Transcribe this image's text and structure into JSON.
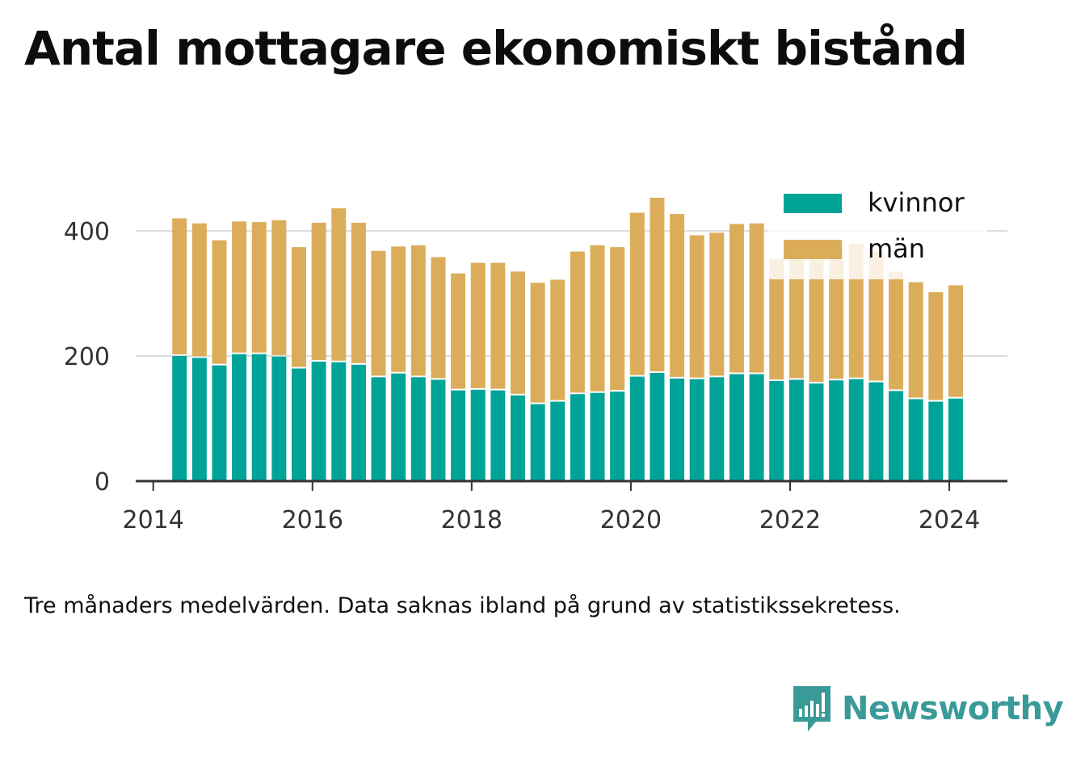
{
  "title": "Antal mottagare ekonomiskt bistånd",
  "note": "Tre månaders medelvärden. Data saknas ibland på grund av statistikssekretess.",
  "brand": {
    "name": "Newsworthy",
    "icon": "newsworthy-logo-icon",
    "color": "#3a9a97"
  },
  "chart_data": {
    "type": "bar",
    "stacked": true,
    "x": [
      2014.33,
      2014.58,
      2014.83,
      2015.08,
      2015.33,
      2015.58,
      2015.83,
      2016.08,
      2016.33,
      2016.58,
      2016.83,
      2017.08,
      2017.33,
      2017.58,
      2017.83,
      2018.08,
      2018.33,
      2018.58,
      2018.83,
      2019.08,
      2019.33,
      2019.58,
      2019.83,
      2020.08,
      2020.33,
      2020.58,
      2020.83,
      2021.08,
      2021.33,
      2021.58,
      2021.83,
      2022.08,
      2022.33,
      2022.58,
      2022.83,
      2023.08,
      2023.33,
      2023.58,
      2023.83,
      2024.08
    ],
    "series": [
      {
        "name": "kvinnor",
        "color": "#00a398",
        "values": [
          200,
          197,
          185,
          203,
          203,
          199,
          180,
          191,
          190,
          186,
          166,
          172,
          166,
          162,
          145,
          146,
          145,
          137,
          123,
          127,
          139,
          141,
          143,
          167,
          173,
          164,
          163,
          166,
          171,
          171,
          160,
          162,
          156,
          161,
          163,
          158,
          144,
          131,
          127,
          132
        ]
      },
      {
        "name": "män",
        "color": "#dbad5b",
        "values": [
          220,
          215,
          200,
          212,
          211,
          218,
          194,
          222,
          246,
          227,
          202,
          203,
          211,
          196,
          187,
          203,
          204,
          198,
          194,
          195,
          228,
          236,
          231,
          262,
          280,
          263,
          230,
          231,
          240,
          241,
          195,
          205,
          208,
          217,
          216,
          209,
          191,
          187,
          175,
          181
        ]
      }
    ],
    "xlabel": "",
    "ylabel": "",
    "xlim": [
      2013.78,
      2024.73
    ],
    "ylim": [
      0,
      400
    ],
    "xticks": [
      "2014",
      "2016",
      "2018",
      "2020",
      "2022",
      "2024"
    ],
    "yticks": [
      "0",
      "200",
      "400"
    ],
    "grid": true,
    "legend_position": "top-right",
    "background": "#ffffff"
  }
}
